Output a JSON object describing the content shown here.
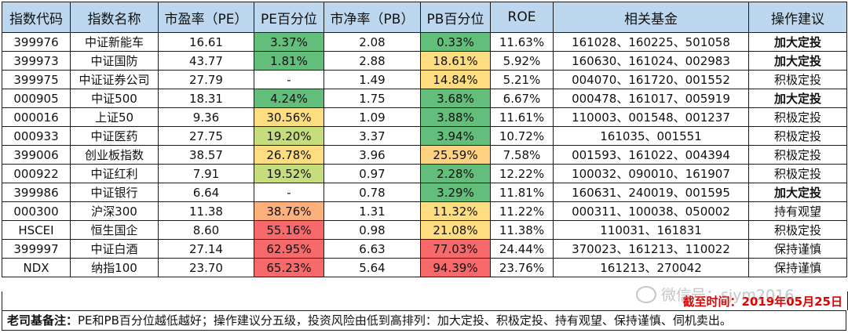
{
  "headers": [
    "指数代码",
    "指数名称",
    "市盈率（PE）",
    "PE百分位",
    "市净率（PB）",
    "PB百分位",
    "ROE",
    "相关基金",
    "操作建议"
  ],
  "rows": [
    {
      "code": "399976",
      "name": "中证新能车",
      "pe": "16.61",
      "pe_pct": "3.37%",
      "pe_color": "#63be7b",
      "pb": "2.08",
      "pb_pct": "0.33%",
      "pb_color": "#63be7b",
      "roe": "11.63%",
      "funds": "161028、160225、501058",
      "advice": "加大定投",
      "bold": true
    },
    {
      "code": "399973",
      "name": "中证国防",
      "pe": "43.77",
      "pe_pct": "1.81%",
      "pe_color": "#63be7b",
      "pb": "2.88",
      "pb_pct": "18.61%",
      "pb_color": "#fedd81",
      "roe": "5.92%",
      "funds": "160630、161024、002983",
      "advice": "加大定投",
      "bold": true
    },
    {
      "code": "399975",
      "name": "中证证券公司",
      "pe": "27.79",
      "pe_pct": "-",
      "pe_color": "#ffffff",
      "pb": "1.49",
      "pb_pct": "14.84%",
      "pb_color": "#fedd81",
      "roe": "5.21%",
      "funds": "004070、161720、001552",
      "advice": "积极定投",
      "bold": false
    },
    {
      "code": "000905",
      "name": "中证500",
      "pe": "18.31",
      "pe_pct": "4.24%",
      "pe_color": "#63be7b",
      "pb": "1.75",
      "pb_pct": "3.68%",
      "pb_color": "#63be7b",
      "roe": "6.67%",
      "funds": "000478、161017、005919",
      "advice": "加大定投",
      "bold": true
    },
    {
      "code": "000016",
      "name": "上证50",
      "pe": "9.36",
      "pe_pct": "30.56%",
      "pe_color": "#fedd81",
      "pb": "1.09",
      "pb_pct": "3.88%",
      "pb_color": "#63be7b",
      "roe": "11.61%",
      "funds": "110003、001548、001237",
      "advice": "积极定投",
      "bold": false
    },
    {
      "code": "000933",
      "name": "中证医药",
      "pe": "27.75",
      "pe_pct": "19.20%",
      "pe_color": "#c5dd7d",
      "pb": "3.37",
      "pb_pct": "3.94%",
      "pb_color": "#63be7b",
      "roe": "10.72%",
      "funds": "161035、001551",
      "advice": "积极定投",
      "bold": false
    },
    {
      "code": "399006",
      "name": "创业板指数",
      "pe": "38.57",
      "pe_pct": "26.78%",
      "pe_color": "#fedd81",
      "pb": "3.96",
      "pb_pct": "25.59%",
      "pb_color": "#fed280",
      "roe": "7.58%",
      "funds": "001593、161022、004394",
      "advice": "积极定投",
      "bold": false
    },
    {
      "code": "000922",
      "name": "中证红利",
      "pe": "7.91",
      "pe_pct": "19.52%",
      "pe_color": "#c5dd7d",
      "pb": "0.97",
      "pb_pct": "2.28%",
      "pb_color": "#63be7b",
      "roe": "12.22%",
      "funds": "100032、090010、161907",
      "advice": "积极定投",
      "bold": false
    },
    {
      "code": "399986",
      "name": "中证银行",
      "pe": "6.64",
      "pe_pct": "-",
      "pe_color": "#ffffff",
      "pb": "0.78",
      "pb_pct": "3.29%",
      "pb_color": "#63be7b",
      "roe": "11.81%",
      "funds": "160631、240019、001595",
      "advice": "加大定投",
      "bold": true
    },
    {
      "code": "000300",
      "name": "沪深300",
      "pe": "11.38",
      "pe_pct": "38.76%",
      "pe_color": "#fdb07b",
      "pb": "1.31",
      "pb_pct": "11.32%",
      "pb_color": "#fedd81",
      "roe": "11.22%",
      "funds": "000311、100038、050002",
      "advice": "持有观望",
      "bold": false
    },
    {
      "code": "HSCEI",
      "name": "恒生国企",
      "pe": "8.60",
      "pe_pct": "55.16%",
      "pe_color": "#f8696b",
      "pb": "0.98",
      "pb_pct": "21.08%",
      "pb_color": "#fedd81",
      "roe": "11.38%",
      "funds": "110031、161831",
      "advice": "积极定投",
      "bold": false
    },
    {
      "code": "399997",
      "name": "中证白酒",
      "pe": "27.14",
      "pe_pct": "62.95%",
      "pe_color": "#f8696b",
      "pb": "6.63",
      "pb_pct": "77.03%",
      "pb_color": "#f8696b",
      "roe": "24.44%",
      "funds": "370023、161213、110022",
      "advice": "保持谨慎",
      "bold": false
    },
    {
      "code": "NDX",
      "name": "纳指100",
      "pe": "23.70",
      "pe_pct": "65.23%",
      "pe_color": "#f8696b",
      "pb": "5.64",
      "pb_pct": "94.39%",
      "pb_color": "#f8696b",
      "roe": "23.76%",
      "funds": "161213、270042",
      "advice": "保持谨慎",
      "bold": false
    }
  ],
  "date_note": "截至时间：2019年05月25日",
  "footer": {
    "label": "老司基备注：",
    "text": "PE和PB百分位越低越好；操作建议分五级，投资风险由低到高排列：加大定投、积极定投、持有观望、保持谨慎、伺机卖出。"
  },
  "watermark": "微信号：sjym2016",
  "colors": {
    "header_bg": "#bdd7ee",
    "date_red": "#e00000"
  }
}
